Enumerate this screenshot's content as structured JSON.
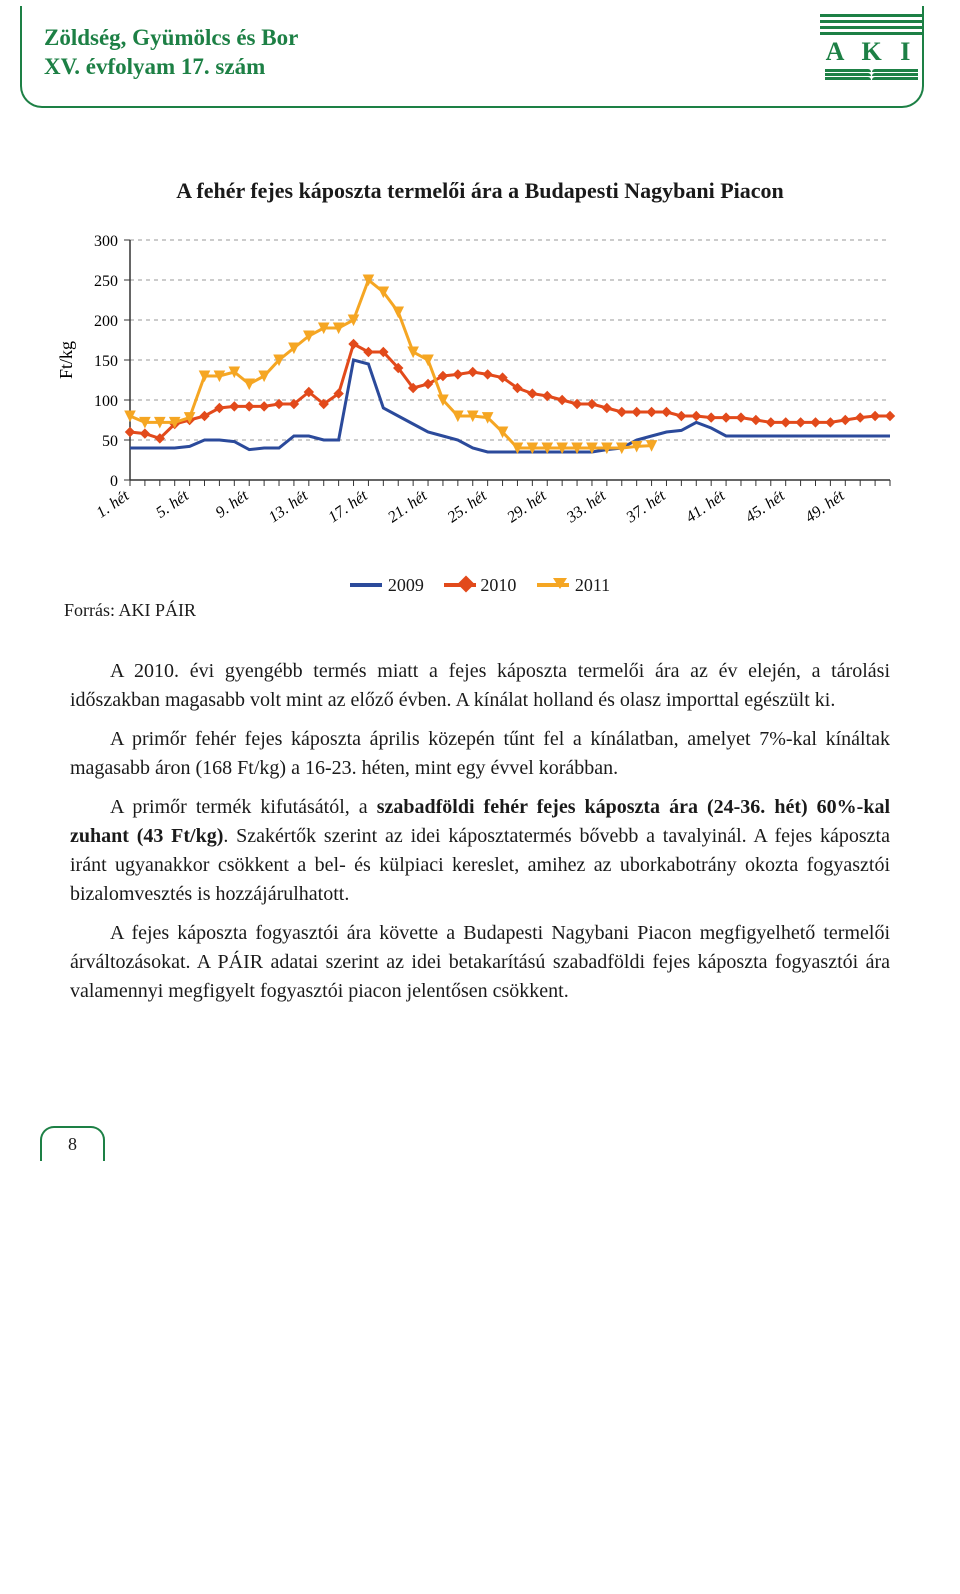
{
  "header": {
    "title_line1": "Zöldség, Gyümölcs és Bor",
    "title_line2": "XV. évfolyam 17. szám",
    "logo_text": "A K I",
    "border_color": "#1d8045",
    "text_color": "#1d8045"
  },
  "chart": {
    "type": "line",
    "title": "A fehér fejes káposzta termelői ára a Budapesti Nagybani Piacon",
    "ylabel": "Ft/kg",
    "ylabel_fontsize": 18,
    "title_fontsize": 22,
    "tick_fontsize": 16,
    "xlim": [
      1,
      52
    ],
    "ylim": [
      0,
      300
    ],
    "ytick_step": 50,
    "yticks": [
      0,
      50,
      100,
      150,
      200,
      250,
      300
    ],
    "xticks_labels": [
      "1. hét",
      "5. hét",
      "9. hét",
      "13. hét",
      "17. hét",
      "21. hét",
      "25. hét",
      "29. hét",
      "33. hét",
      "37. hét",
      "41. hét",
      "45. hét",
      "49. hét"
    ],
    "xticks_positions": [
      1,
      5,
      9,
      13,
      17,
      21,
      25,
      29,
      33,
      37,
      41,
      45,
      49
    ],
    "background_color": "#ffffff",
    "grid_color": "#9a9a9a",
    "grid_dash": "4,4",
    "axis_color": "#333333",
    "legend_items": [
      "2009",
      "2010",
      "2011"
    ],
    "series": {
      "2009": {
        "color": "#2b4a9b",
        "marker": "none",
        "line_width": 3,
        "x": [
          1,
          2,
          3,
          4,
          5,
          6,
          7,
          8,
          9,
          10,
          11,
          12,
          13,
          14,
          15,
          16,
          17,
          18,
          19,
          20,
          21,
          22,
          23,
          24,
          25,
          26,
          27,
          28,
          29,
          30,
          31,
          32,
          33,
          34,
          35,
          36,
          37,
          38,
          39,
          40,
          41,
          42,
          43,
          44,
          45,
          46,
          47,
          48,
          49,
          50,
          51,
          52
        ],
        "y": [
          40,
          40,
          40,
          40,
          42,
          50,
          50,
          48,
          38,
          40,
          40,
          55,
          55,
          50,
          50,
          150,
          145,
          90,
          80,
          70,
          60,
          55,
          50,
          40,
          35,
          35,
          35,
          35,
          35,
          35,
          35,
          35,
          38,
          40,
          50,
          55,
          60,
          62,
          72,
          65,
          55,
          55,
          55,
          55,
          55,
          55,
          55,
          55,
          55,
          55,
          55,
          55
        ]
      },
      "2010": {
        "color": "#e24a1b",
        "marker": "diamond",
        "marker_size": 9,
        "line_width": 3,
        "x": [
          1,
          2,
          3,
          4,
          5,
          6,
          7,
          8,
          9,
          10,
          11,
          12,
          13,
          14,
          15,
          16,
          17,
          18,
          19,
          20,
          21,
          22,
          23,
          24,
          25,
          26,
          27,
          28,
          29,
          30,
          31,
          32,
          33,
          34,
          35,
          36,
          37,
          38,
          39,
          40,
          41,
          42,
          43,
          44,
          45,
          46,
          47,
          48,
          49,
          50,
          51,
          52
        ],
        "y": [
          60,
          58,
          52,
          70,
          75,
          80,
          90,
          92,
          92,
          92,
          95,
          95,
          110,
          95,
          108,
          170,
          160,
          160,
          140,
          115,
          120,
          130,
          132,
          135,
          132,
          128,
          115,
          108,
          105,
          100,
          95,
          95,
          90,
          85,
          85,
          85,
          85,
          80,
          80,
          78,
          78,
          78,
          75,
          72,
          72,
          72,
          72,
          72,
          75,
          78,
          80,
          80
        ]
      },
      "2011": {
        "color": "#f5a623",
        "marker": "triangle-down",
        "marker_size": 10,
        "line_width": 3,
        "x": [
          1,
          2,
          3,
          4,
          5,
          6,
          7,
          8,
          9,
          10,
          11,
          12,
          13,
          14,
          15,
          16,
          17,
          18,
          19,
          20,
          21,
          22,
          23,
          24,
          25,
          26,
          27,
          28,
          29,
          30,
          31,
          32,
          33,
          34,
          35,
          36
        ],
        "y": [
          80,
          72,
          72,
          72,
          78,
          130,
          130,
          135,
          120,
          130,
          150,
          165,
          180,
          190,
          190,
          200,
          250,
          235,
          210,
          160,
          150,
          100,
          80,
          80,
          78,
          60,
          40,
          40,
          40,
          40,
          40,
          40,
          40,
          40,
          42,
          43
        ]
      }
    }
  },
  "source_label": "Forrás: AKI PÁIR",
  "paragraphs": [
    "A 2010. évi gyengébb termés miatt a fejes káposzta termelői ára az év elején, a tárolási időszakban magasabb volt mint az előző évben. A kínálat holland és olasz importtal egészült ki.",
    "A primőr fehér fejes káposzta április közepén tűnt fel a kínálatban, amelyet 7%-kal kínáltak magasabb áron (168 Ft/kg) a 16-23. héten, mint egy évvel korábban.",
    "A primőr termék kifutásától, a <b>szabadföldi fehér fejes káposzta ára (24-36. hét) 60%-kal zuhant (43 Ft/kg)</b>. Szakértők szerint az idei káposztatermés bővebb a tavalyinál. A fejes káposzta iránt ugyanakkor csökkent a bel- és külpiaci kereslet, amihez az uborkabotrány okozta fogyasztói bizalomvesztés is hozzájárulhatott.",
    "A fejes káposzta fogyasztói ára követte a Budapesti Nagybani Piacon megfigyelhető termelői árváltozásokat. A PÁIR adatai szerint az idei betakarítású szabadföldi fejes káposzta fogyasztói ára valamennyi megfigyelt fogyasztói piacon jelentősen csökkent."
  ],
  "page_number": "8"
}
